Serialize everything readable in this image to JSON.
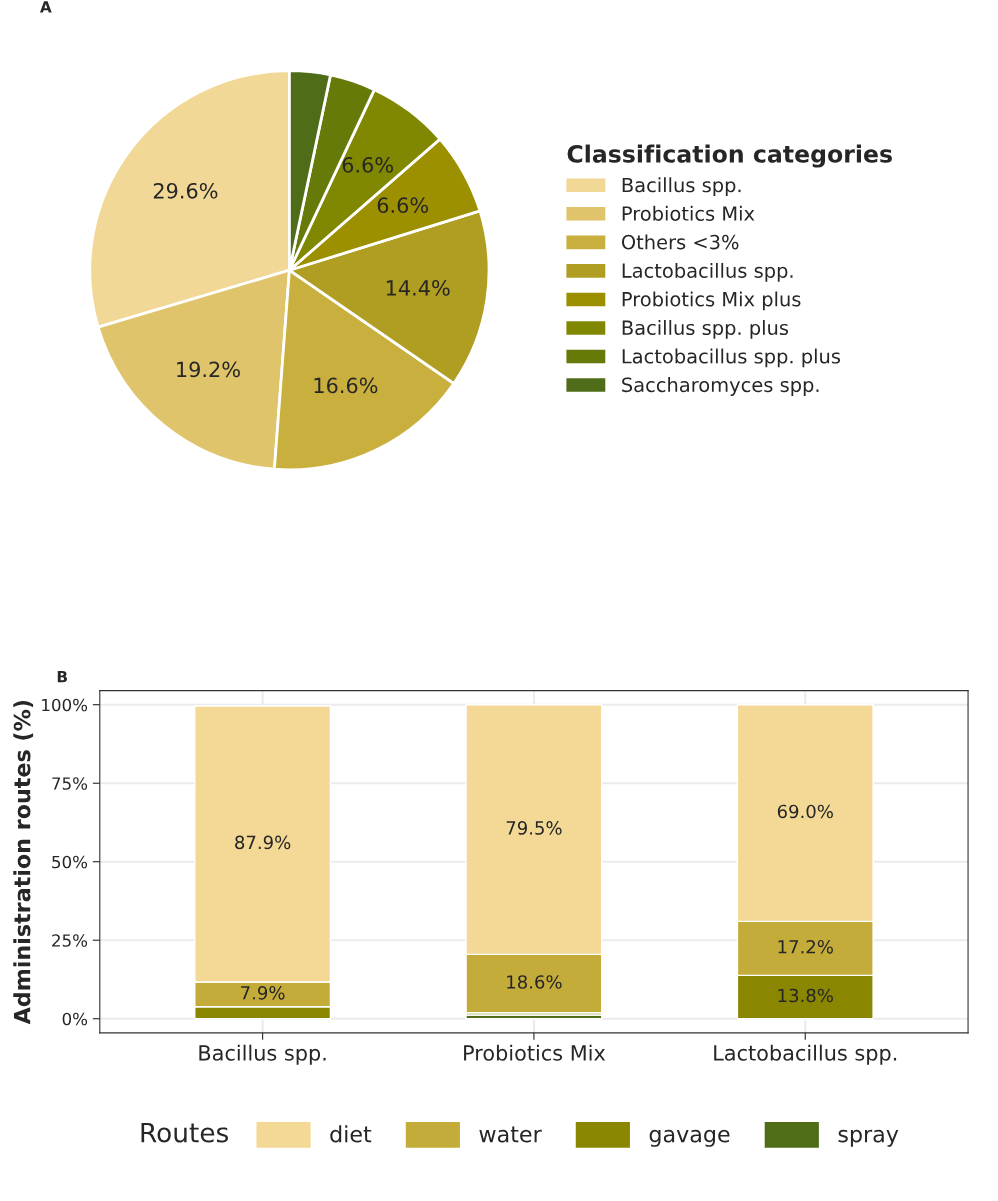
{
  "chart_data": [
    {
      "type": "pie",
      "title": "A",
      "legend_title": "Classification categories",
      "legend": "right",
      "categories": [
        "Bacillus spp.",
        "Probiotics Mix",
        "Others <3%",
        "Lactobacillus spp.",
        "Probiotics Mix plus",
        "Bacillus spp. plus",
        "Lactobacillus spp. plus",
        "Saccharomyces spp."
      ],
      "values": [
        29.6,
        19.2,
        16.6,
        14.4,
        6.6,
        6.6,
        3.7,
        3.3
      ],
      "value_labels": [
        "29.6%",
        "19.2%",
        "16.6%",
        "14.4%",
        "6.6%",
        "6.6%",
        null,
        null
      ],
      "colors": [
        "#f2d896",
        "#dfc46b",
        "#c9b03e",
        "#b09e22",
        "#9c9000",
        "#808700",
        "#667a0a",
        "#4f6d18"
      ]
    },
    {
      "type": "bar",
      "title": "B",
      "stacked": true,
      "ylabel": "Administration routes (%)",
      "legend_title": "Routes",
      "legend": "bottom",
      "grid": true,
      "categories": [
        "Bacillus spp.",
        "Probiotics Mix",
        "Lactobacillus spp."
      ],
      "ylim": [
        -4.5,
        104.5
      ],
      "yticks": [
        {
          "value": 0,
          "label": "0%"
        },
        {
          "value": 25,
          "label": "25%"
        },
        {
          "value": 50,
          "label": "50%"
        },
        {
          "value": 75,
          "label": "75%"
        },
        {
          "value": 100,
          "label": "100%"
        }
      ],
      "series": [
        {
          "name": "spray",
          "color": "#4e6d16",
          "values": [
            null,
            1.2,
            0
          ],
          "value_labels": [
            null,
            null,
            null
          ]
        },
        {
          "name": "gavage",
          "color": "#8a8600",
          "values": [
            3.8,
            0.7,
            13.8
          ],
          "value_labels": [
            null,
            null,
            "13.8%"
          ]
        },
        {
          "name": "water",
          "color": "#c4ac3a",
          "values": [
            7.9,
            18.6,
            17.2
          ],
          "value_labels": [
            "7.9%",
            "18.6%",
            "17.2%"
          ]
        },
        {
          "name": "diet",
          "color": "#f3d995",
          "values": [
            87.9,
            79.5,
            69.0
          ],
          "value_labels": [
            "87.9%",
            "79.5%",
            "69.0%"
          ]
        }
      ]
    }
  ]
}
